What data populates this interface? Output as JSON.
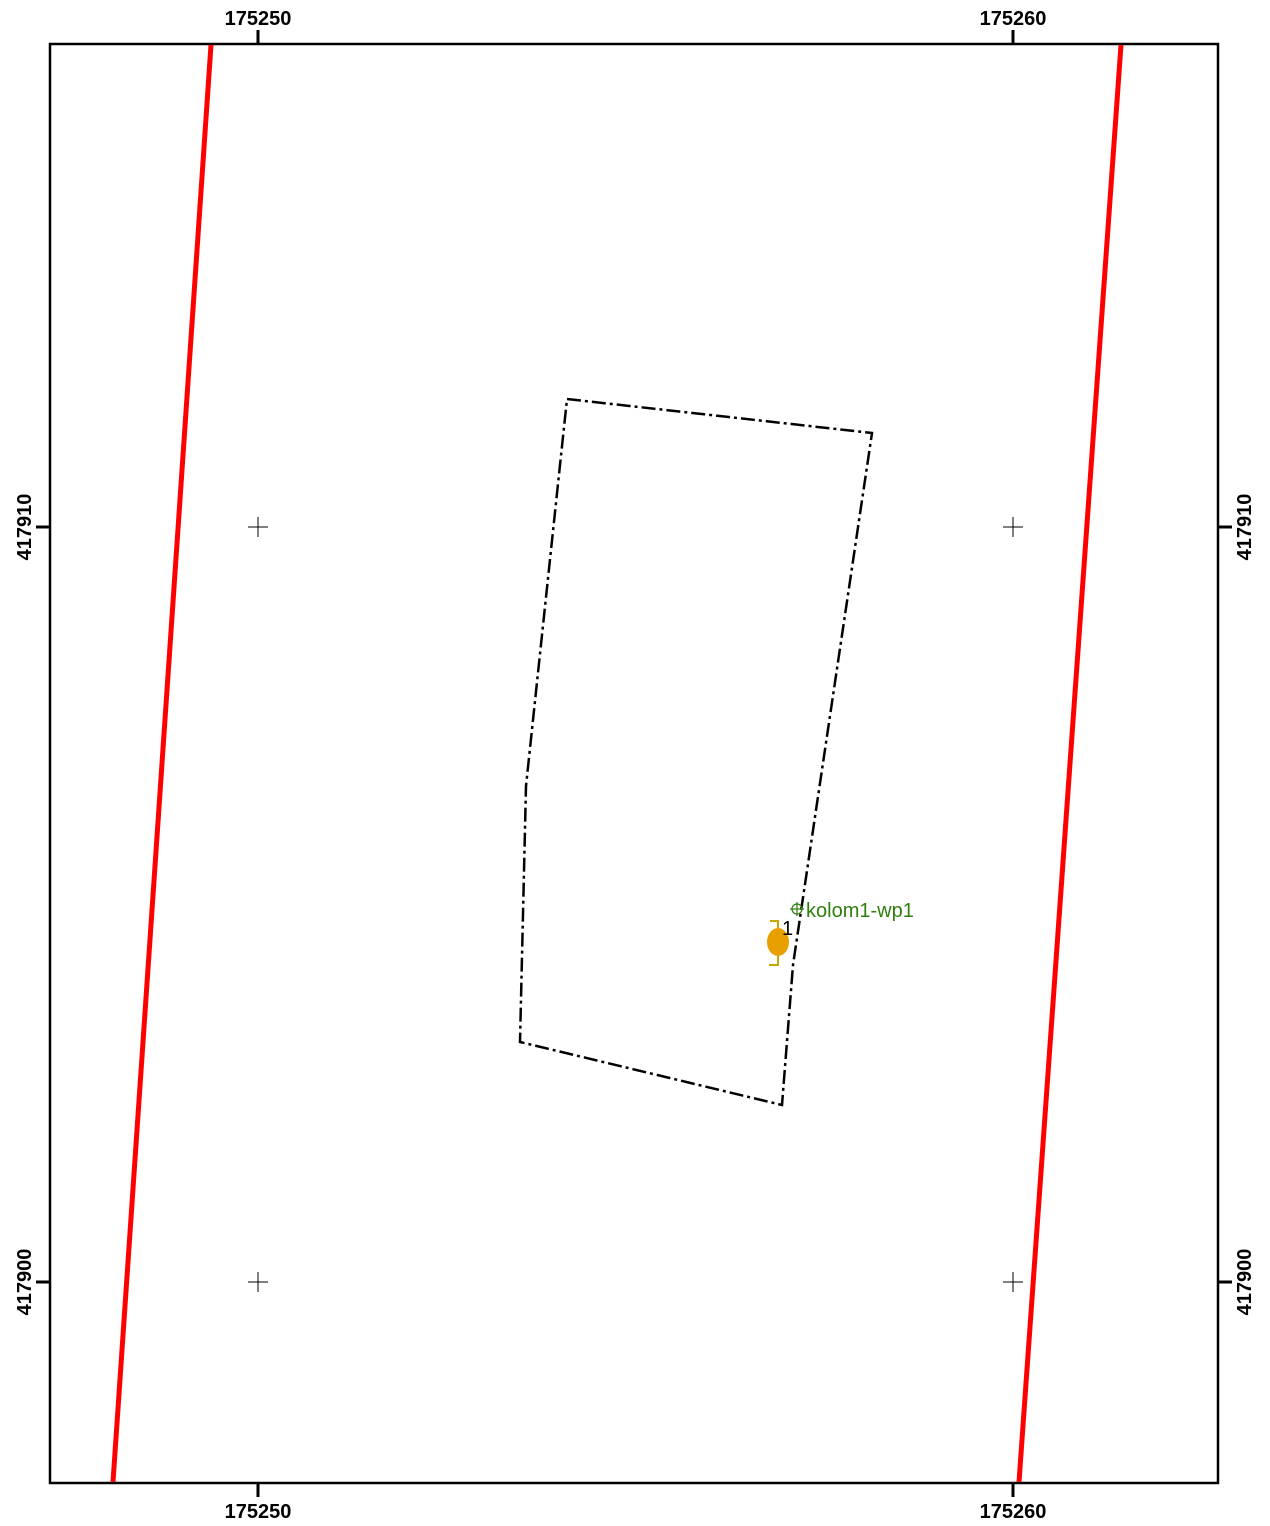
{
  "map": {
    "grid": {
      "x_labels": [
        "175250",
        "175260"
      ],
      "y_labels": [
        "417910",
        "417900"
      ]
    },
    "features": {
      "point_label": "kolom1-wp1",
      "point_number": "1"
    },
    "colors": {
      "frame": "#000000",
      "boundary_lines": "#ff0000",
      "parcel_outline": "#000000",
      "point_label": "#2f7f0f",
      "point_marker": "#e8a000",
      "bracket": "#c8a800"
    }
  }
}
